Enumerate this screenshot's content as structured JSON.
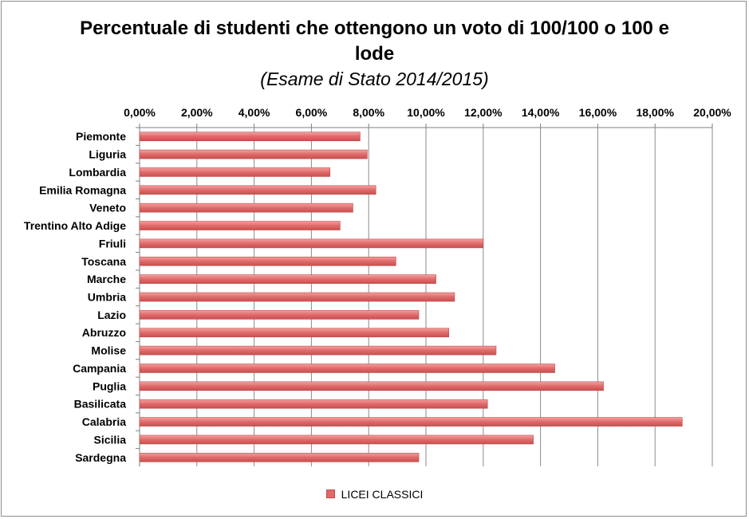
{
  "chart_data": {
    "type": "bar",
    "orientation": "horizontal",
    "title_line1": "Percentuale di studenti che ottengono un voto di 100/100 o 100 e",
    "title_line2": "lode",
    "subtitle": "(Esame di Stato 2014/2015)",
    "categories": [
      "Piemonte",
      "Liguria",
      "Lombardia",
      "Emilia Romagna",
      "Veneto",
      "Trentino Alto Adige",
      "Friuli",
      "Toscana",
      "Marche",
      "Umbria",
      "Lazio",
      "Abruzzo",
      "Molise",
      "Campania",
      "Puglia",
      "Basilicata",
      "Calabria",
      "Sicilia",
      "Sardegna"
    ],
    "series": [
      {
        "name": "LICEI CLASSICI",
        "values": [
          7.7,
          7.95,
          6.65,
          8.25,
          7.45,
          7.0,
          12.0,
          8.95,
          10.35,
          11.0,
          9.75,
          10.8,
          12.45,
          14.5,
          16.2,
          12.15,
          18.95,
          13.75,
          9.75
        ]
      }
    ],
    "xlim": [
      0,
      20
    ],
    "x_ticks": [
      "0,00%",
      "2,00%",
      "4,00%",
      "6,00%",
      "8,00%",
      "10,00%",
      "12,00%",
      "14,00%",
      "16,00%",
      "18,00%",
      "20,00%"
    ],
    "x_axis_position": "top",
    "grid": "vertical",
    "legend_position": "bottom",
    "bar_color": "#e06a6a"
  }
}
